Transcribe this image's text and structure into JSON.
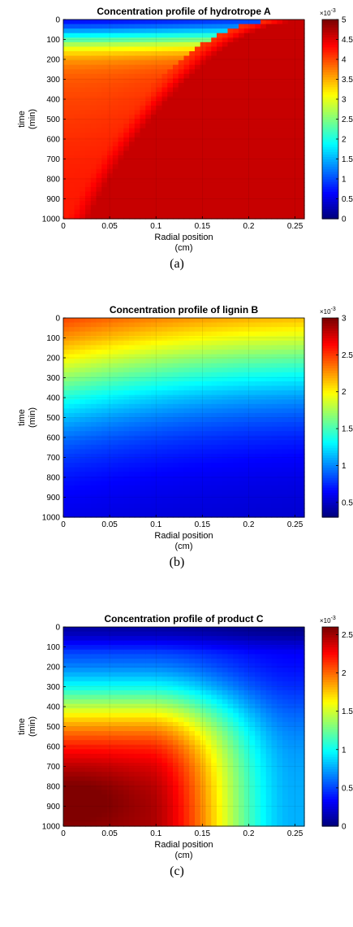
{
  "chart_data": [
    {
      "type": "heatmap",
      "title": "Concentration profile of hydrotrope A",
      "xlabel": [
        "Radial position",
        "(cm)"
      ],
      "ylabel": [
        "time",
        "(min)"
      ],
      "x_ticks": [
        0,
        0.05,
        0.1,
        0.15,
        0.2,
        0.25
      ],
      "x_tick_labels": [
        "0",
        "0.05",
        "0.1",
        "0.15",
        "0.2",
        "0.25"
      ],
      "y_ticks": [
        0,
        100,
        200,
        300,
        400,
        500,
        600,
        700,
        800,
        900,
        1000
      ],
      "y_tick_labels": [
        "0",
        "100",
        "200",
        "300",
        "400",
        "500",
        "600",
        "700",
        "800",
        "900",
        "1000"
      ],
      "xlim": [
        0,
        0.26
      ],
      "ylim": [
        0,
        1000
      ],
      "y_reversed": true,
      "colormap": "jet",
      "colorbar": {
        "range": [
          0,
          0.005
        ],
        "ticks": [
          0,
          0.5,
          1,
          1.5,
          2,
          2.5,
          3,
          3.5,
          4,
          4.5,
          5
        ],
        "tick_labels": [
          "0",
          "0.5",
          "1",
          "1.5",
          "2",
          "2.5",
          "3",
          "3.5",
          "4",
          "4.5",
          "5"
        ],
        "multiplier": "×10",
        "multiplier_exp": "-3"
      },
      "profile": "hydrotrope",
      "caption": "(a)"
    },
    {
      "type": "heatmap",
      "title": "Concentration profile of lignin B",
      "xlabel": [
        "Radial position",
        "(cm)"
      ],
      "ylabel": [
        "time",
        "(min)"
      ],
      "x_ticks": [
        0,
        0.05,
        0.1,
        0.15,
        0.2,
        0.25
      ],
      "x_tick_labels": [
        "0",
        "0.05",
        "0.1",
        "0.15",
        "0.2",
        "0.25"
      ],
      "y_ticks": [
        0,
        100,
        200,
        300,
        400,
        500,
        600,
        700,
        800,
        900,
        1000
      ],
      "y_tick_labels": [
        "0",
        "100",
        "200",
        "300",
        "400",
        "500",
        "600",
        "700",
        "800",
        "900",
        "1000"
      ],
      "xlim": [
        0,
        0.26
      ],
      "ylim": [
        0,
        1000
      ],
      "y_reversed": true,
      "colormap": "jet",
      "colorbar": {
        "range": [
          0.0003,
          0.003
        ],
        "ticks": [
          0.5,
          1,
          1.5,
          2,
          2.5,
          3
        ],
        "tick_labels": [
          "0.5",
          "1",
          "1.5",
          "2",
          "2.5",
          "3"
        ],
        "multiplier": "×10",
        "multiplier_exp": "-3"
      },
      "profile": "lignin",
      "caption": "(b)"
    },
    {
      "type": "heatmap",
      "title": "Concentration profile of product C",
      "xlabel": [
        "Radial position",
        "(cm)"
      ],
      "ylabel": [
        "time",
        "(min)"
      ],
      "x_ticks": [
        0,
        0.05,
        0.1,
        0.15,
        0.2,
        0.25
      ],
      "x_tick_labels": [
        "0",
        "0.05",
        "0.1",
        "0.15",
        "0.2",
        "0.25"
      ],
      "y_ticks": [
        0,
        100,
        200,
        300,
        400,
        500,
        600,
        700,
        800,
        900,
        1000
      ],
      "y_tick_labels": [
        "0",
        "100",
        "200",
        "300",
        "400",
        "500",
        "600",
        "700",
        "800",
        "900",
        "1000"
      ],
      "xlim": [
        0,
        0.26
      ],
      "ylim": [
        0,
        1000
      ],
      "y_reversed": true,
      "colormap": "jet",
      "colorbar": {
        "range": [
          0,
          0.0026
        ],
        "ticks": [
          0,
          0.5,
          1,
          1.5,
          2,
          2.5
        ],
        "tick_labels": [
          "0",
          "0.5",
          "1",
          "1.5",
          "2",
          "2.5"
        ],
        "multiplier": "×10",
        "multiplier_exp": "-3"
      },
      "profile": "product",
      "caption": "(c)"
    }
  ]
}
